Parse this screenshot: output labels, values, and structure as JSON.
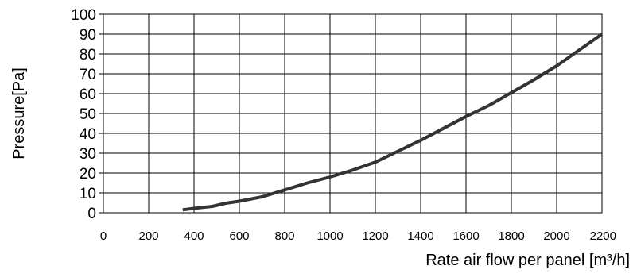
{
  "chart_data": {
    "type": "line",
    "title": "",
    "xlabel": "Rate air flow per panel [m³/h]",
    "ylabel": "Pressure[Pa]",
    "xlim": [
      0,
      2200
    ],
    "ylim": [
      0,
      100
    ],
    "x_ticks": [
      0,
      200,
      400,
      600,
      800,
      1000,
      1200,
      1400,
      1600,
      1800,
      2000,
      2200
    ],
    "y_ticks": [
      0,
      10,
      20,
      30,
      40,
      50,
      60,
      70,
      80,
      90,
      100
    ],
    "grid": true,
    "legend": "none",
    "line_color": "#333333",
    "series": [
      {
        "x": [
          350,
          400,
          480,
          540,
          600,
          700,
          800,
          900,
          1000,
          1100,
          1200,
          1300,
          1400,
          1500,
          1600,
          1700,
          1800,
          1900,
          2000,
          2100,
          2200
        ],
        "y": [
          1.5,
          2.2,
          3.2,
          4.8,
          5.8,
          8,
          11.5,
          15,
          18,
          21.5,
          25.5,
          31,
          36.5,
          42.5,
          48.5,
          54,
          60.5,
          67,
          74,
          82,
          90
        ]
      }
    ]
  }
}
